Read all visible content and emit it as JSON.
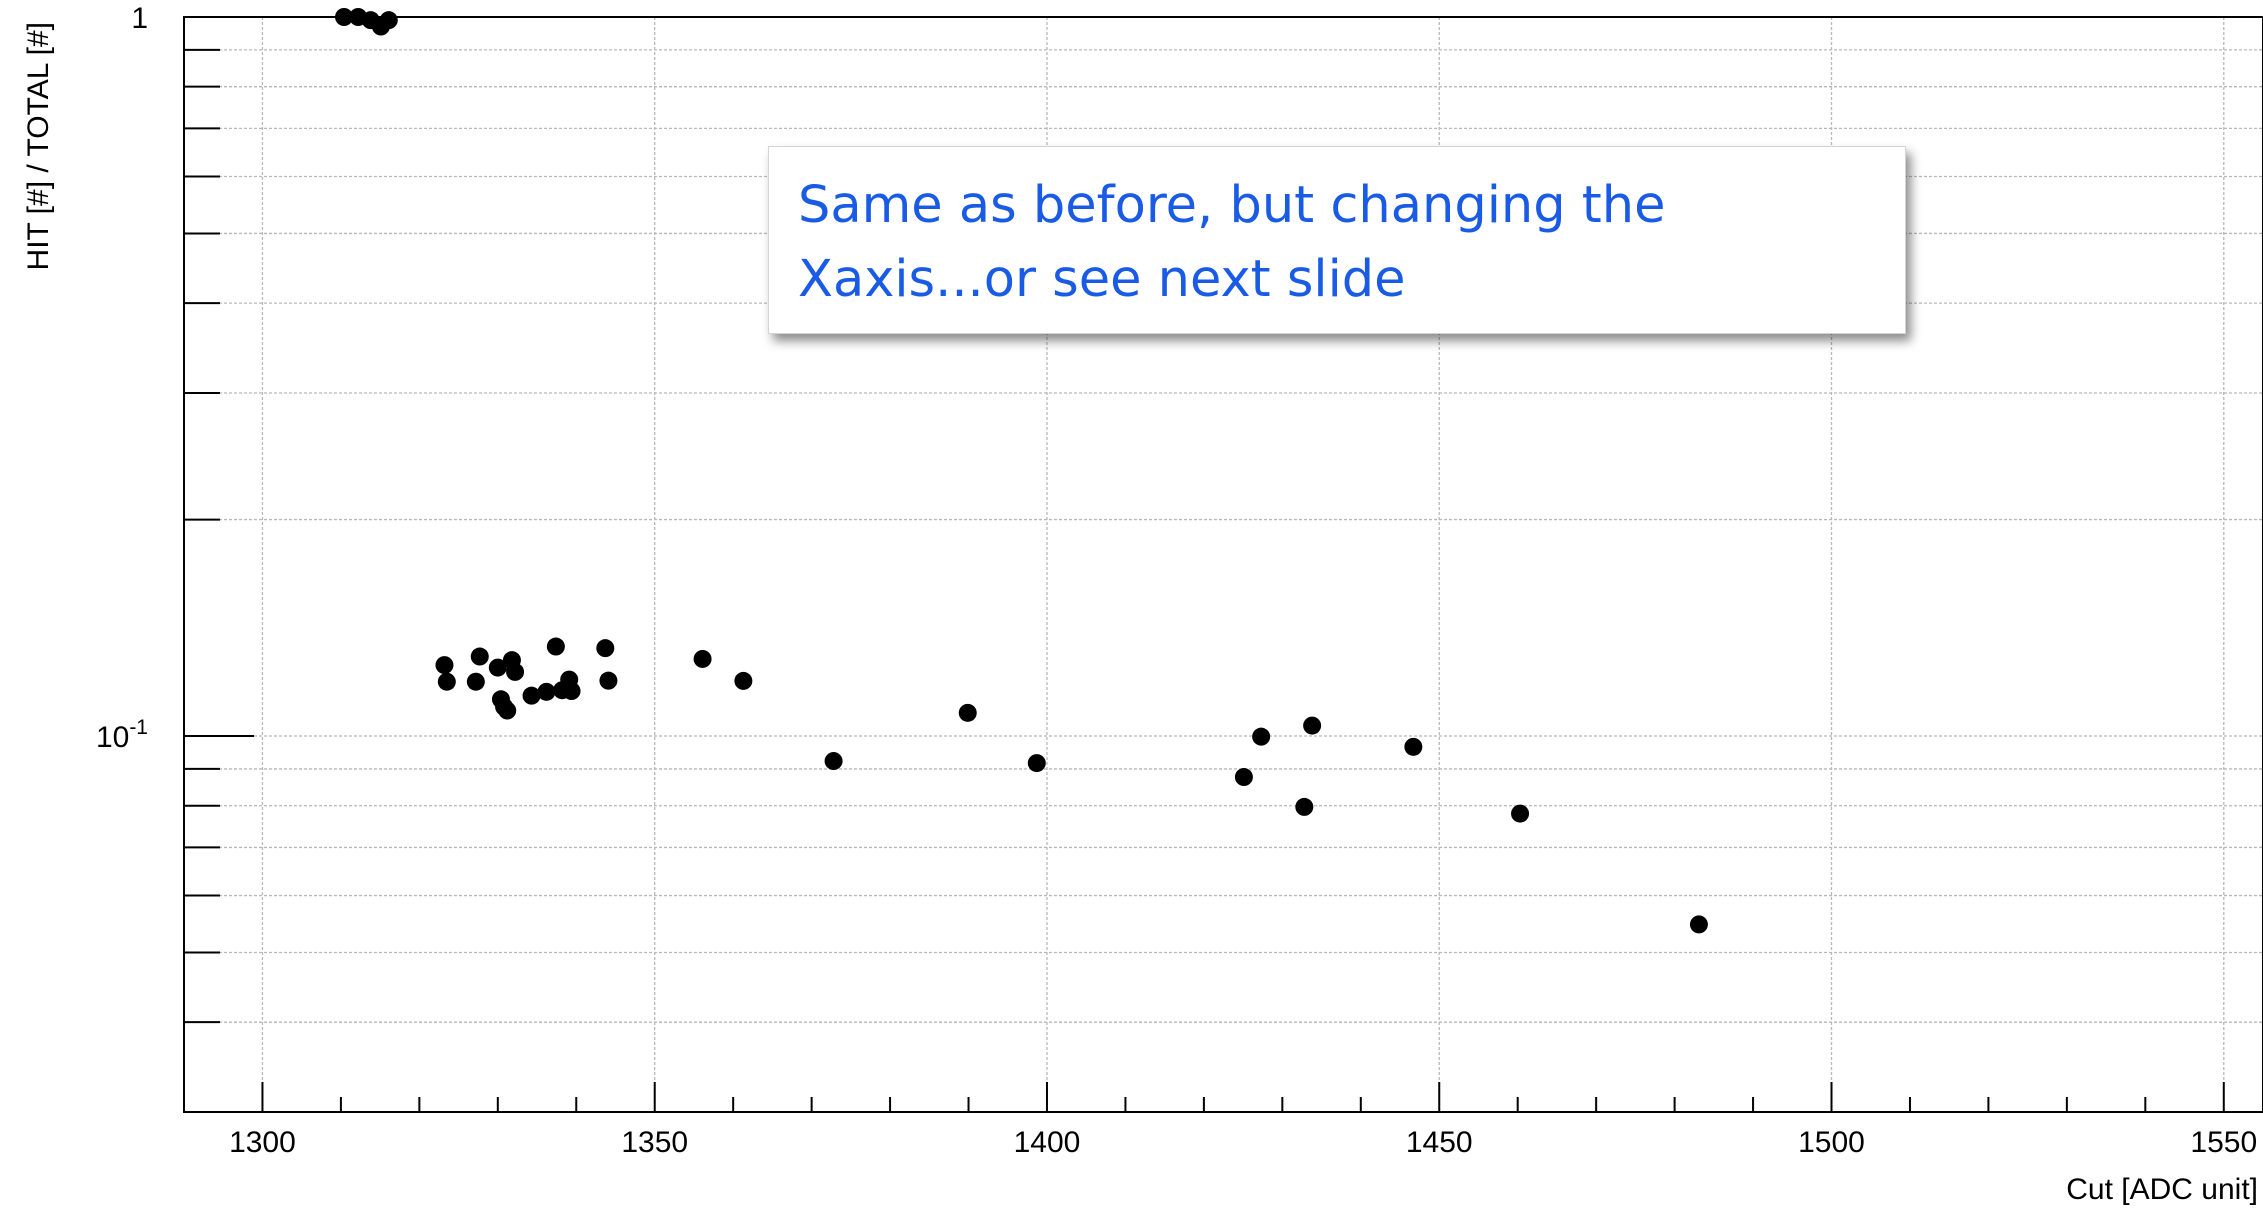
{
  "chart_data": {
    "type": "scatter",
    "xlabel": "Cut [ADC unit]",
    "ylabel": "HIT [#] / TOTAL [#]",
    "xlim": [
      1290,
      1555
    ],
    "ylim": [
      0.03,
      1.0
    ],
    "yscale": "log",
    "grid": true,
    "x_ticks": [
      1300,
      1350,
      1400,
      1450,
      1500,
      1550
    ],
    "x_tick_labels": [
      "1300",
      "1350",
      "1400",
      "1450",
      "1500",
      "1550"
    ],
    "y_tick_labels": [
      {
        "value": 0.1,
        "base": "10",
        "exp": "-1"
      },
      {
        "value": 1.0,
        "base": "1",
        "exp": ""
      }
    ],
    "points": [
      {
        "x": 1310.4,
        "y": 1.0
      },
      {
        "x": 1312.2,
        "y": 1.0
      },
      {
        "x": 1313.8,
        "y": 0.99
      },
      {
        "x": 1315.1,
        "y": 0.97
      },
      {
        "x": 1316.1,
        "y": 0.99
      },
      {
        "x": 1323.2,
        "y": 0.1255
      },
      {
        "x": 1323.5,
        "y": 0.119
      },
      {
        "x": 1327.2,
        "y": 0.119
      },
      {
        "x": 1327.7,
        "y": 0.129
      },
      {
        "x": 1330.0,
        "y": 0.1245
      },
      {
        "x": 1330.4,
        "y": 0.1125
      },
      {
        "x": 1330.8,
        "y": 0.1098
      },
      {
        "x": 1331.2,
        "y": 0.1085
      },
      {
        "x": 1331.8,
        "y": 0.1275
      },
      {
        "x": 1332.2,
        "y": 0.1228
      },
      {
        "x": 1334.3,
        "y": 0.1138
      },
      {
        "x": 1336.2,
        "y": 0.1152
      },
      {
        "x": 1337.4,
        "y": 0.1332
      },
      {
        "x": 1338.2,
        "y": 0.1158
      },
      {
        "x": 1339.1,
        "y": 0.1198
      },
      {
        "x": 1339.4,
        "y": 0.1155
      },
      {
        "x": 1343.7,
        "y": 0.1325
      },
      {
        "x": 1344.1,
        "y": 0.1194
      },
      {
        "x": 1356.1,
        "y": 0.128
      },
      {
        "x": 1361.3,
        "y": 0.1193
      },
      {
        "x": 1372.8,
        "y": 0.0923
      },
      {
        "x": 1389.9,
        "y": 0.1077
      },
      {
        "x": 1398.7,
        "y": 0.0917
      },
      {
        "x": 1425.1,
        "y": 0.0877
      },
      {
        "x": 1427.3,
        "y": 0.0998
      },
      {
        "x": 1432.8,
        "y": 0.0797
      },
      {
        "x": 1433.8,
        "y": 0.1034
      },
      {
        "x": 1446.7,
        "y": 0.0966
      },
      {
        "x": 1460.3,
        "y": 0.078
      },
      {
        "x": 1483.1,
        "y": 0.0547
      }
    ],
    "annotation_lines": [
      "Same as before, but changing the",
      "Xaxis...or see next slide"
    ]
  }
}
